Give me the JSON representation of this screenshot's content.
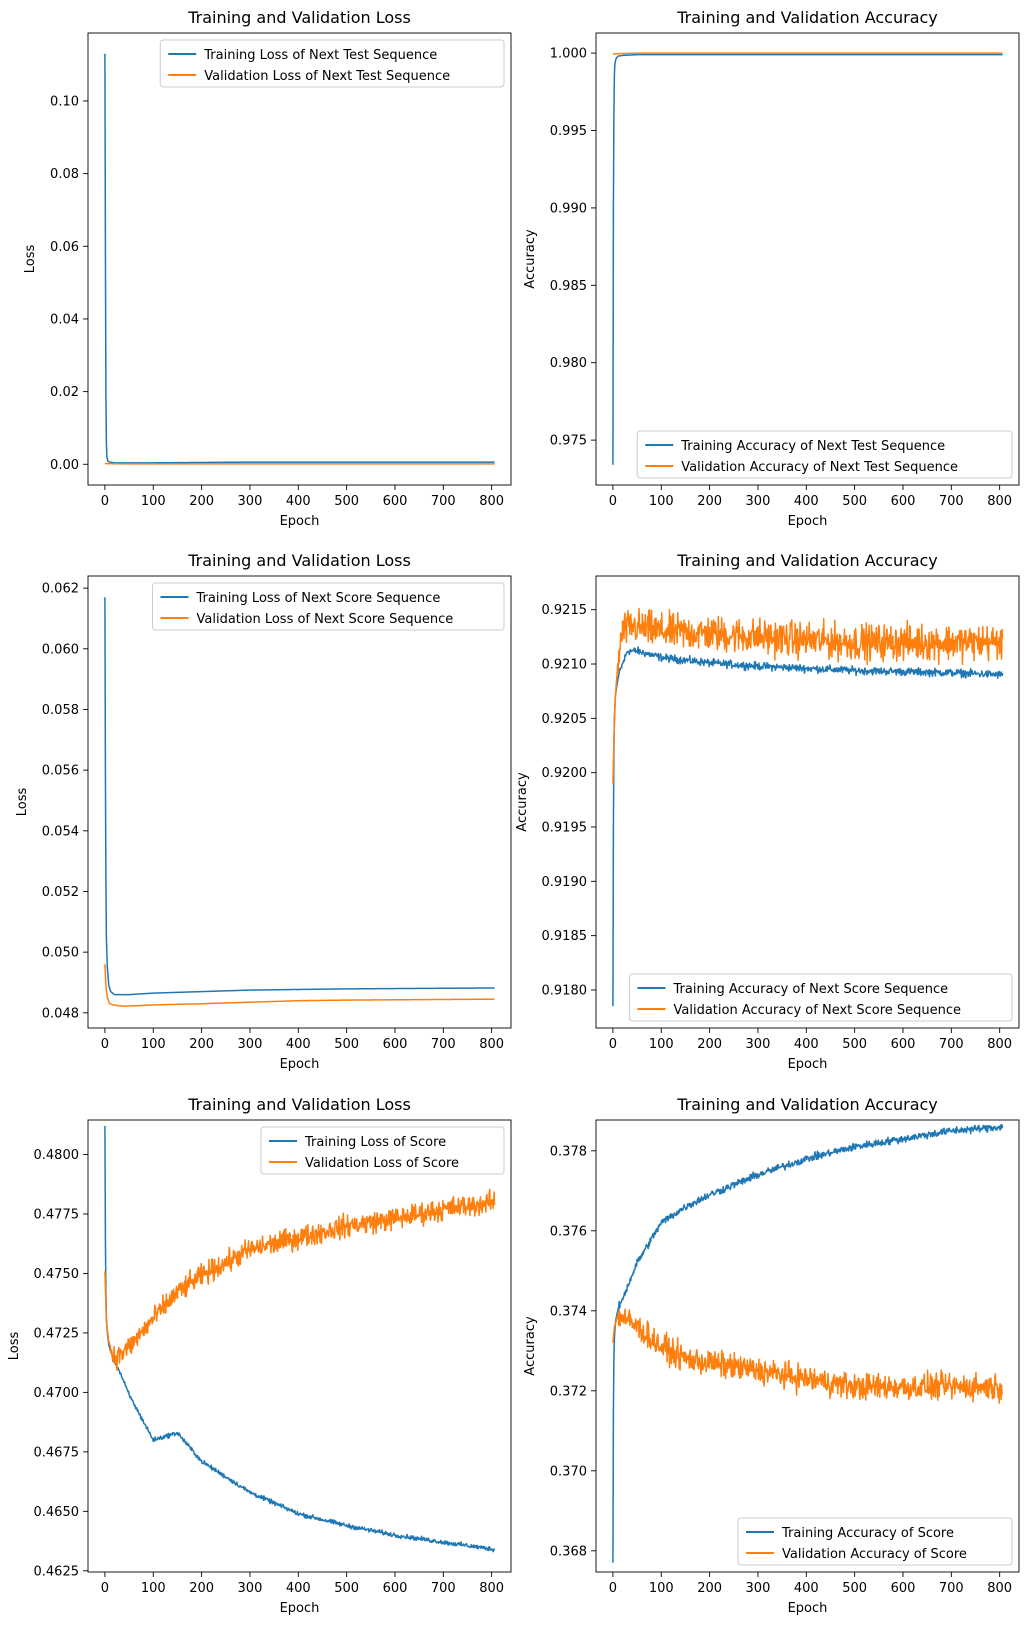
{
  "chart_data": [
    {
      "type": "line",
      "title": "Training and Validation Loss",
      "xlabel": "Epoch",
      "ylabel": "Loss",
      "xlim": [
        -35,
        840
      ],
      "ylim": [
        -0.0057,
        0.1187
      ],
      "xticks": [
        0,
        100,
        200,
        300,
        400,
        500,
        600,
        700,
        800
      ],
      "yticks": [
        0.0,
        0.02,
        0.04,
        0.06,
        0.08,
        0.1
      ],
      "tick_decimals": 2,
      "legend": "top-right",
      "series": [
        {
          "name": "Training Loss of Next Test Sequence",
          "color": "#1f77b4",
          "x": [
            0,
            1,
            2,
            3,
            4,
            6,
            10,
            20,
            50,
            100,
            200,
            300,
            400,
            500,
            600,
            700,
            806
          ],
          "y": [
            0.113,
            0.06,
            0.02,
            0.006,
            0.002,
            0.0009,
            0.0006,
            0.0004,
            0.0004,
            0.0004,
            0.0005,
            0.0006,
            0.0006,
            0.0006,
            0.0006,
            0.0006,
            0.0006
          ]
        },
        {
          "name": "Validation Loss of Next Test Sequence",
          "color": "#ff7f0e",
          "x": [
            0,
            50,
            200,
            400,
            600,
            806
          ],
          "y": [
            0.0002,
            0.0001,
            0.0001,
            0.0001,
            0.0001,
            0.0001
          ]
        }
      ]
    },
    {
      "type": "line",
      "title": "Training and Validation Accuracy",
      "xlabel": "Epoch",
      "ylabel": "Accuracy",
      "xlim": [
        -35,
        840
      ],
      "ylim": [
        0.9721,
        1.0013
      ],
      "xticks": [
        0,
        100,
        200,
        300,
        400,
        500,
        600,
        700,
        800
      ],
      "yticks": [
        0.975,
        0.98,
        0.985,
        0.99,
        0.995,
        1.0
      ],
      "tick_decimals": 3,
      "legend": "bottom-right",
      "series": [
        {
          "name": "Training Accuracy of Next Test Sequence",
          "color": "#1f77b4",
          "x": [
            0,
            1,
            2,
            3,
            4,
            6,
            10,
            20,
            50,
            200,
            400,
            600,
            806
          ],
          "y": [
            0.9734,
            0.99,
            0.996,
            0.9985,
            0.9993,
            0.9996,
            0.9998,
            0.99985,
            0.9999,
            0.9999,
            0.9999,
            0.9999,
            0.9999
          ]
        },
        {
          "name": "Validation Accuracy of Next Test Sequence",
          "color": "#ff7f0e",
          "x": [
            0,
            50,
            200,
            400,
            600,
            806
          ],
          "y": [
            0.99995,
            1.0,
            1.0,
            1.0,
            1.0,
            1.0
          ]
        }
      ]
    },
    {
      "type": "line",
      "title": "Training and Validation Loss",
      "xlabel": "Epoch",
      "ylabel": "Loss",
      "xlim": [
        -35,
        840
      ],
      "ylim": [
        0.0475,
        0.0624
      ],
      "xticks": [
        0,
        100,
        200,
        300,
        400,
        500,
        600,
        700,
        800
      ],
      "yticks": [
        0.048,
        0.05,
        0.052,
        0.054,
        0.056,
        0.058,
        0.06,
        0.062
      ],
      "tick_decimals": 3,
      "legend": "top-right",
      "series": [
        {
          "name": "Training Loss of Next Score Sequence",
          "color": "#1f77b4",
          "x": [
            0,
            1,
            2,
            3,
            5,
            8,
            12,
            20,
            30,
            50,
            100,
            200,
            300,
            400,
            500,
            600,
            700,
            806
          ],
          "y": [
            0.0617,
            0.056,
            0.0525,
            0.0505,
            0.0495,
            0.0489,
            0.0487,
            0.0486,
            0.0486,
            0.0486,
            0.04865,
            0.0487,
            0.04875,
            0.04877,
            0.04879,
            0.0488,
            0.04881,
            0.04882
          ]
        },
        {
          "name": "Validation Loss of Next Score Sequence",
          "color": "#ff7f0e",
          "x": [
            0,
            2,
            5,
            10,
            20,
            40,
            60,
            100,
            200,
            300,
            400,
            500,
            600,
            700,
            806
          ],
          "y": [
            0.0496,
            0.0489,
            0.0485,
            0.0483,
            0.04825,
            0.04822,
            0.04823,
            0.04826,
            0.0483,
            0.04835,
            0.0484,
            0.04842,
            0.04843,
            0.04844,
            0.04845
          ]
        }
      ]
    },
    {
      "type": "line",
      "title": "Training and Validation Accuracy",
      "xlabel": "Epoch",
      "ylabel": "Accuracy",
      "xlim": [
        -35,
        840
      ],
      "ylim": [
        0.91765,
        0.92181
      ],
      "xticks": [
        0,
        100,
        200,
        300,
        400,
        500,
        600,
        700,
        800
      ],
      "yticks": [
        0.918,
        0.9185,
        0.919,
        0.9195,
        0.92,
        0.9205,
        0.921,
        0.9215
      ],
      "tick_decimals": 4,
      "legend": "bottom-right",
      "series": [
        {
          "name": "Training Accuracy of Next Score Sequence",
          "color": "#1f77b4",
          "x": [
            0,
            1,
            2,
            3,
            5,
            8,
            12,
            20,
            30,
            50,
            100,
            200,
            300,
            400,
            500,
            600,
            700,
            806
          ],
          "y": [
            0.91785,
            0.9195,
            0.9202,
            0.9205,
            0.9207,
            0.9208,
            0.9209,
            0.921,
            0.92112,
            0.92112,
            0.92106,
            0.92101,
            0.92098,
            0.92096,
            0.92094,
            0.92093,
            0.92092,
            0.9209
          ],
          "noise": 3e-05
        },
        {
          "name": "Validation Accuracy of Next Score Sequence",
          "color": "#ff7f0e",
          "x": [
            0,
            2,
            5,
            10,
            20,
            40,
            60,
            100,
            200,
            300,
            400,
            500,
            600,
            700,
            806
          ],
          "y": [
            0.9199,
            0.9203,
            0.9207,
            0.921,
            0.9213,
            0.92135,
            0.92133,
            0.9213,
            0.92128,
            0.92125,
            0.92122,
            0.9212,
            0.9212,
            0.9212,
            0.9212
          ],
          "noise": 0.00014
        }
      ]
    },
    {
      "type": "line",
      "title": "Training and Validation Loss",
      "xlabel": "Epoch",
      "ylabel": "Loss",
      "xlim": [
        -35,
        840
      ],
      "ylim": [
        0.46245,
        0.48145
      ],
      "xticks": [
        0,
        100,
        200,
        300,
        400,
        500,
        600,
        700,
        800
      ],
      "yticks": [
        0.4625,
        0.465,
        0.4675,
        0.47,
        0.4725,
        0.475,
        0.4775,
        0.48
      ],
      "tick_decimals": 4,
      "legend": "top-right",
      "series": [
        {
          "name": "Training Loss of Score",
          "color": "#1f77b4",
          "x": [
            0,
            1,
            2,
            3,
            5,
            8,
            12,
            20,
            30,
            50,
            100,
            150,
            200,
            300,
            400,
            500,
            600,
            700,
            806
          ],
          "y": [
            0.4812,
            0.4765,
            0.4742,
            0.4732,
            0.4725,
            0.472,
            0.4717,
            0.4713,
            0.4709,
            0.4699,
            0.468,
            0.4683,
            0.4671,
            0.4658,
            0.4649,
            0.4644,
            0.464,
            0.4637,
            0.4634
          ],
          "noise": 8e-05
        },
        {
          "name": "Validation Loss of Score",
          "color": "#ff7f0e",
          "x": [
            0,
            3,
            8,
            15,
            25,
            50,
            100,
            150,
            200,
            300,
            400,
            500,
            600,
            700,
            806
          ],
          "y": [
            0.4751,
            0.473,
            0.4721,
            0.4716,
            0.4715,
            0.4719,
            0.4731,
            0.4742,
            0.4749,
            0.476,
            0.4765,
            0.477,
            0.4773,
            0.4777,
            0.478
          ],
          "noise": 0.0004
        }
      ]
    },
    {
      "type": "line",
      "title": "Training and Validation Accuracy",
      "xlabel": "Epoch",
      "ylabel": "Accuracy",
      "xlim": [
        -35,
        840
      ],
      "ylim": [
        0.36747,
        0.37877
      ],
      "xticks": [
        0,
        100,
        200,
        300,
        400,
        500,
        600,
        700,
        800
      ],
      "yticks": [
        0.368,
        0.37,
        0.372,
        0.374,
        0.376,
        0.378
      ],
      "tick_decimals": 3,
      "legend": "bottom-right",
      "series": [
        {
          "name": "Training Accuracy of Score",
          "color": "#1f77b4",
          "x": [
            0,
            1,
            2,
            3,
            5,
            8,
            12,
            20,
            30,
            50,
            100,
            150,
            200,
            300,
            400,
            500,
            600,
            700,
            806
          ],
          "y": [
            0.3677,
            0.3715,
            0.3728,
            0.3733,
            0.3737,
            0.3739,
            0.3741,
            0.3743,
            0.3746,
            0.3752,
            0.3762,
            0.3766,
            0.3769,
            0.3774,
            0.3778,
            0.3781,
            0.3783,
            0.3785,
            0.3786
          ],
          "noise": 8e-05
        },
        {
          "name": "Validation Accuracy of Score",
          "color": "#ff7f0e",
          "x": [
            0,
            3,
            8,
            15,
            25,
            50,
            100,
            150,
            200,
            300,
            400,
            500,
            600,
            700,
            806
          ],
          "y": [
            0.3732,
            0.3736,
            0.3738,
            0.3739,
            0.3738,
            0.3736,
            0.3731,
            0.3728,
            0.3727,
            0.3725,
            0.3723,
            0.3721,
            0.3721,
            0.3721,
            0.3721
          ],
          "noise": 0.00028
        }
      ]
    }
  ]
}
